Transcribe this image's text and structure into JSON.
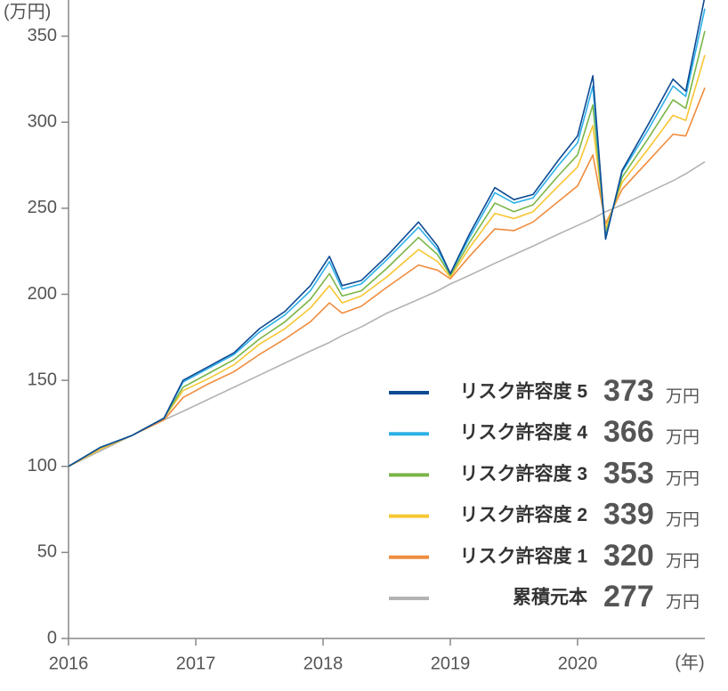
{
  "chart_data": {
    "type": "line",
    "y_unit_label": "(万円)",
    "x_unit_label": "(年)",
    "unit_label": "万円",
    "xlim": [
      2016,
      2021
    ],
    "ylim": [
      0,
      371
    ],
    "xticks": [
      2016,
      2017,
      2018,
      2019,
      2020
    ],
    "yticks": [
      0,
      50,
      100,
      150,
      200,
      250,
      300,
      350
    ],
    "x": [
      2016.0,
      2016.25,
      2016.5,
      2016.75,
      2016.9,
      2017.1,
      2017.3,
      2017.5,
      2017.7,
      2017.9,
      2018.05,
      2018.15,
      2018.3,
      2018.5,
      2018.75,
      2018.9,
      2019.0,
      2019.15,
      2019.35,
      2019.5,
      2019.65,
      2019.85,
      2020.0,
      2020.12,
      2020.22,
      2020.35,
      2020.55,
      2020.75,
      2020.85,
      2021.0
    ],
    "series": [
      {
        "name": "リスク許容度 5",
        "color": "#0d4a94",
        "total": 373,
        "values": [
          100,
          111,
          118,
          128,
          150,
          158,
          166,
          180,
          190,
          205,
          222,
          205,
          208,
          222,
          242,
          228,
          212,
          235,
          262,
          255,
          258,
          278,
          292,
          327,
          232,
          272,
          298,
          325,
          318,
          373
        ]
      },
      {
        "name": "リスク許容度 4",
        "color": "#2eb0e8",
        "total": 366,
        "values": [
          100,
          111,
          118,
          128,
          149,
          157,
          165,
          178,
          188,
          202,
          219,
          203,
          206,
          220,
          239,
          226,
          212,
          233,
          259,
          253,
          256,
          275,
          288,
          321,
          233,
          271,
          295,
          321,
          315,
          366
        ]
      },
      {
        "name": "リスク許容度 3",
        "color": "#7ab547",
        "total": 353,
        "values": [
          100,
          111,
          118,
          128,
          146,
          154,
          162,
          174,
          184,
          197,
          212,
          199,
          202,
          215,
          233,
          223,
          211,
          230,
          253,
          248,
          252,
          269,
          281,
          310,
          235,
          268,
          290,
          313,
          308,
          353
        ]
      },
      {
        "name": "リスク許容度 2",
        "color": "#f7c633",
        "total": 339,
        "values": [
          100,
          110,
          118,
          128,
          144,
          151,
          159,
          171,
          180,
          192,
          205,
          195,
          199,
          210,
          226,
          219,
          210,
          227,
          247,
          244,
          248,
          263,
          274,
          298,
          238,
          265,
          284,
          304,
          301,
          339
        ]
      },
      {
        "name": "リスク許容度 1",
        "color": "#f08c3e",
        "total": 320,
        "values": [
          100,
          110,
          118,
          127,
          140,
          148,
          155,
          165,
          174,
          184,
          195,
          189,
          193,
          204,
          217,
          214,
          209,
          222,
          238,
          237,
          242,
          254,
          263,
          281,
          241,
          261,
          277,
          293,
          292,
          320
        ]
      },
      {
        "name": "累積元本",
        "color": "#b3b3b3",
        "total": 277,
        "values": [
          100,
          109,
          118,
          127,
          132,
          139,
          146,
          153,
          160,
          167,
          172,
          176,
          181,
          189,
          197,
          202,
          206,
          211,
          218,
          223,
          228,
          235,
          240,
          244,
          248,
          252,
          259,
          266,
          270,
          277
        ]
      }
    ]
  }
}
